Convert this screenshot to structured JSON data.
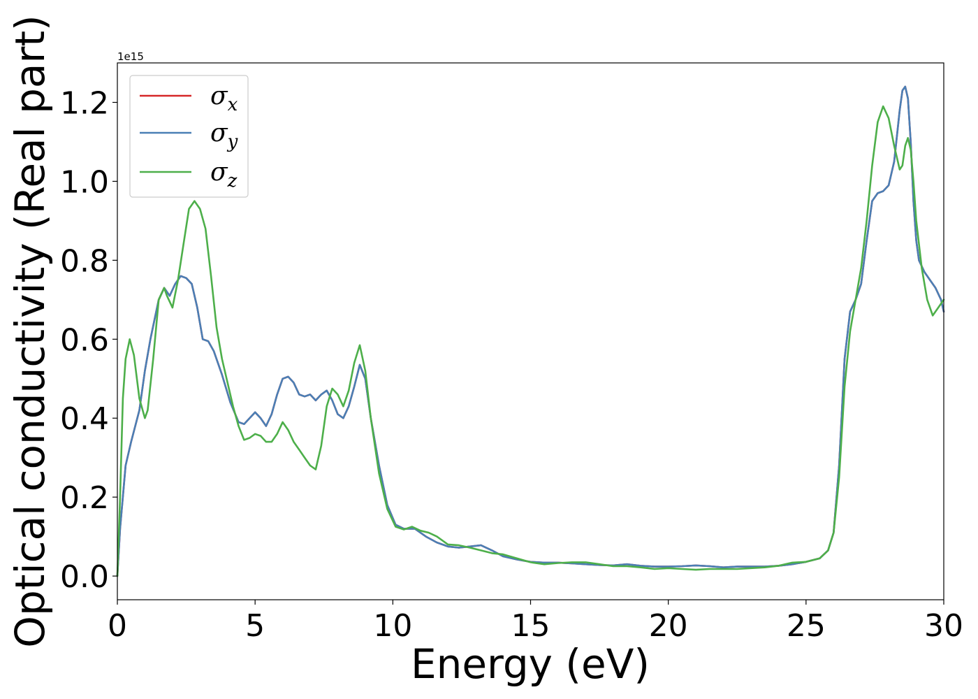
{
  "chart_data": {
    "type": "line",
    "xlabel": "Energy (eV)",
    "ylabel": "Optical conductivity (Real part)",
    "y_offset_label": "1e15",
    "xlim": [
      0,
      30
    ],
    "ylim": [
      -0.06,
      1.3
    ],
    "xticks": [
      0,
      5,
      10,
      15,
      20,
      25,
      30
    ],
    "xtick_labels": [
      "0",
      "5",
      "10",
      "15",
      "20",
      "25",
      "30"
    ],
    "yticks": [
      0.0,
      0.2,
      0.4,
      0.6,
      0.8,
      1.0,
      1.2
    ],
    "ytick_labels": [
      "0.0",
      "0.2",
      "0.4",
      "0.6",
      "0.8",
      "1.0",
      "1.2"
    ],
    "grid": false,
    "legend_position": "top-left",
    "series": [
      {
        "name": "σx",
        "symbol": "σ",
        "subscript": "x",
        "color": "#d62728",
        "x": [
          0,
          0.1,
          0.3,
          0.5,
          0.8,
          1.0,
          1.2,
          1.5,
          1.7,
          1.9,
          2.1,
          2.3,
          2.5,
          2.7,
          2.9,
          3.1,
          3.3,
          3.5,
          3.8,
          4.1,
          4.4,
          4.6,
          4.8,
          5.0,
          5.2,
          5.4,
          5.6,
          5.8,
          6.0,
          6.2,
          6.4,
          6.6,
          6.8,
          7.0,
          7.2,
          7.4,
          7.6,
          7.8,
          8.0,
          8.2,
          8.4,
          8.6,
          8.8,
          9.0,
          9.2,
          9.5,
          9.8,
          10.1,
          10.4,
          10.8,
          11.2,
          11.6,
          12.0,
          12.4,
          12.8,
          13.2,
          13.6,
          14.0,
          14.5,
          15.0,
          15.5,
          16.0,
          16.5,
          17.0,
          17.5,
          18.0,
          18.5,
          19.0,
          19.5,
          20.0,
          20.5,
          21.0,
          21.5,
          22.0,
          22.5,
          23.0,
          23.5,
          24.0,
          24.5,
          25.0,
          25.5,
          25.8,
          26.0,
          26.2,
          26.4,
          26.6,
          26.8,
          27.0,
          27.2,
          27.4,
          27.6,
          27.8,
          28.0,
          28.2,
          28.4,
          28.5,
          28.6,
          28.7,
          28.8,
          28.9,
          29.0,
          29.1,
          29.3,
          29.5,
          29.7,
          29.9,
          30.0
        ],
        "values": [
          0.0,
          0.12,
          0.28,
          0.34,
          0.42,
          0.52,
          0.6,
          0.7,
          0.73,
          0.71,
          0.74,
          0.76,
          0.755,
          0.74,
          0.68,
          0.6,
          0.595,
          0.57,
          0.51,
          0.44,
          0.39,
          0.385,
          0.4,
          0.415,
          0.4,
          0.38,
          0.41,
          0.46,
          0.5,
          0.505,
          0.49,
          0.46,
          0.455,
          0.46,
          0.445,
          0.46,
          0.47,
          0.445,
          0.41,
          0.4,
          0.43,
          0.48,
          0.535,
          0.5,
          0.4,
          0.28,
          0.18,
          0.13,
          0.12,
          0.12,
          0.1,
          0.085,
          0.075,
          0.072,
          0.075,
          0.078,
          0.065,
          0.05,
          0.042,
          0.036,
          0.034,
          0.034,
          0.032,
          0.03,
          0.028,
          0.027,
          0.03,
          0.026,
          0.024,
          0.024,
          0.025,
          0.027,
          0.025,
          0.022,
          0.024,
          0.024,
          0.024,
          0.026,
          0.03,
          0.036,
          0.045,
          0.065,
          0.11,
          0.28,
          0.55,
          0.67,
          0.7,
          0.74,
          0.85,
          0.95,
          0.97,
          0.975,
          0.99,
          1.05,
          1.18,
          1.23,
          1.24,
          1.21,
          1.1,
          0.95,
          0.85,
          0.8,
          0.77,
          0.75,
          0.73,
          0.7,
          0.67
        ]
      },
      {
        "name": "σy",
        "symbol": "σ",
        "subscript": "y",
        "color": "#4a7fb5",
        "x": [
          0,
          0.1,
          0.3,
          0.5,
          0.8,
          1.0,
          1.2,
          1.5,
          1.7,
          1.9,
          2.1,
          2.3,
          2.5,
          2.7,
          2.9,
          3.1,
          3.3,
          3.5,
          3.8,
          4.1,
          4.4,
          4.6,
          4.8,
          5.0,
          5.2,
          5.4,
          5.6,
          5.8,
          6.0,
          6.2,
          6.4,
          6.6,
          6.8,
          7.0,
          7.2,
          7.4,
          7.6,
          7.8,
          8.0,
          8.2,
          8.4,
          8.6,
          8.8,
          9.0,
          9.2,
          9.5,
          9.8,
          10.1,
          10.4,
          10.8,
          11.2,
          11.6,
          12.0,
          12.4,
          12.8,
          13.2,
          13.6,
          14.0,
          14.5,
          15.0,
          15.5,
          16.0,
          16.5,
          17.0,
          17.5,
          18.0,
          18.5,
          19.0,
          19.5,
          20.0,
          20.5,
          21.0,
          21.5,
          22.0,
          22.5,
          23.0,
          23.5,
          24.0,
          24.5,
          25.0,
          25.5,
          25.8,
          26.0,
          26.2,
          26.4,
          26.6,
          26.8,
          27.0,
          27.2,
          27.4,
          27.6,
          27.8,
          28.0,
          28.2,
          28.4,
          28.5,
          28.6,
          28.7,
          28.8,
          28.9,
          29.0,
          29.1,
          29.3,
          29.5,
          29.7,
          29.9,
          30.0
        ],
        "values": [
          0.0,
          0.12,
          0.28,
          0.34,
          0.42,
          0.52,
          0.6,
          0.7,
          0.73,
          0.71,
          0.74,
          0.76,
          0.755,
          0.74,
          0.68,
          0.6,
          0.595,
          0.57,
          0.51,
          0.44,
          0.39,
          0.385,
          0.4,
          0.415,
          0.4,
          0.38,
          0.41,
          0.46,
          0.5,
          0.505,
          0.49,
          0.46,
          0.455,
          0.46,
          0.445,
          0.46,
          0.47,
          0.445,
          0.41,
          0.4,
          0.43,
          0.48,
          0.535,
          0.5,
          0.4,
          0.28,
          0.18,
          0.13,
          0.12,
          0.12,
          0.1,
          0.085,
          0.075,
          0.072,
          0.075,
          0.078,
          0.065,
          0.05,
          0.042,
          0.036,
          0.034,
          0.034,
          0.032,
          0.03,
          0.028,
          0.027,
          0.03,
          0.026,
          0.024,
          0.024,
          0.025,
          0.027,
          0.025,
          0.022,
          0.024,
          0.024,
          0.024,
          0.026,
          0.03,
          0.036,
          0.045,
          0.065,
          0.11,
          0.28,
          0.55,
          0.67,
          0.7,
          0.74,
          0.85,
          0.95,
          0.97,
          0.975,
          0.99,
          1.05,
          1.18,
          1.23,
          1.24,
          1.21,
          1.1,
          0.95,
          0.85,
          0.8,
          0.77,
          0.75,
          0.73,
          0.7,
          0.67
        ]
      },
      {
        "name": "σz",
        "symbol": "σ",
        "subscript": "z",
        "color": "#4daf4a",
        "x": [
          0,
          0.1,
          0.2,
          0.3,
          0.45,
          0.6,
          0.8,
          1.0,
          1.1,
          1.3,
          1.5,
          1.7,
          1.8,
          2.0,
          2.2,
          2.4,
          2.6,
          2.8,
          3.0,
          3.2,
          3.4,
          3.6,
          3.8,
          4.0,
          4.2,
          4.4,
          4.6,
          4.8,
          5.0,
          5.2,
          5.4,
          5.6,
          5.8,
          6.0,
          6.2,
          6.4,
          6.6,
          6.8,
          7.0,
          7.2,
          7.4,
          7.6,
          7.8,
          8.0,
          8.2,
          8.4,
          8.6,
          8.8,
          9.0,
          9.2,
          9.5,
          9.8,
          10.1,
          10.4,
          10.7,
          11.0,
          11.3,
          11.6,
          12.0,
          12.4,
          12.8,
          13.2,
          13.6,
          14.0,
          14.5,
          15.0,
          15.5,
          16.0,
          16.5,
          17.0,
          17.5,
          18.0,
          18.5,
          19.0,
          19.5,
          20.0,
          20.5,
          21.0,
          21.5,
          22.0,
          22.5,
          23.0,
          23.5,
          24.0,
          24.5,
          25.0,
          25.5,
          25.8,
          26.0,
          26.2,
          26.4,
          26.6,
          26.8,
          27.0,
          27.2,
          27.4,
          27.6,
          27.8,
          28.0,
          28.2,
          28.4,
          28.5,
          28.6,
          28.7,
          28.8,
          28.9,
          29.0,
          29.2,
          29.4,
          29.6,
          29.8,
          30.0
        ],
        "values": [
          0.0,
          0.2,
          0.45,
          0.55,
          0.6,
          0.56,
          0.45,
          0.4,
          0.42,
          0.55,
          0.7,
          0.73,
          0.71,
          0.68,
          0.75,
          0.84,
          0.93,
          0.95,
          0.93,
          0.88,
          0.76,
          0.63,
          0.55,
          0.49,
          0.43,
          0.38,
          0.345,
          0.35,
          0.36,
          0.355,
          0.34,
          0.34,
          0.36,
          0.39,
          0.37,
          0.34,
          0.32,
          0.3,
          0.28,
          0.27,
          0.33,
          0.43,
          0.475,
          0.46,
          0.43,
          0.47,
          0.54,
          0.585,
          0.52,
          0.4,
          0.26,
          0.17,
          0.125,
          0.118,
          0.125,
          0.115,
          0.11,
          0.1,
          0.08,
          0.078,
          0.072,
          0.065,
          0.058,
          0.055,
          0.045,
          0.035,
          0.03,
          0.033,
          0.035,
          0.035,
          0.03,
          0.025,
          0.025,
          0.022,
          0.018,
          0.02,
          0.018,
          0.016,
          0.018,
          0.018,
          0.018,
          0.02,
          0.022,
          0.026,
          0.034,
          0.036,
          0.045,
          0.065,
          0.11,
          0.25,
          0.48,
          0.62,
          0.7,
          0.78,
          0.9,
          1.04,
          1.15,
          1.19,
          1.16,
          1.09,
          1.03,
          1.04,
          1.09,
          1.11,
          1.08,
          1.0,
          0.9,
          0.78,
          0.7,
          0.66,
          0.68,
          0.7
        ]
      }
    ]
  }
}
